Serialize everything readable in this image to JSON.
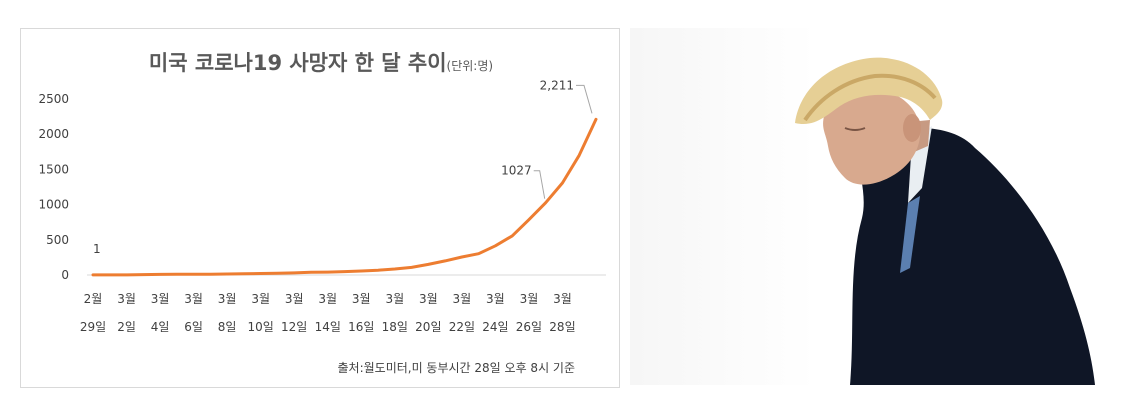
{
  "chart_data": {
    "type": "line",
    "title": "미국 코로나19 사망자 한 달 추이",
    "unit": "(단위:명)",
    "source": "출처:월도미터,미 동부시간 28일 오후 8시 기준",
    "y_ticks": [
      "2500",
      "2000",
      "1500",
      "1000",
      "500",
      "0"
    ],
    "ylim": [
      0,
      2500
    ],
    "x_tick_labels": [
      {
        "month": "2월",
        "day": "29일"
      },
      {
        "month": "3월",
        "day": "2일"
      },
      {
        "month": "3월",
        "day": "4일"
      },
      {
        "month": "3월",
        "day": "6일"
      },
      {
        "month": "3월",
        "day": "8일"
      },
      {
        "month": "3월",
        "day": "10일"
      },
      {
        "month": "3월",
        "day": "12일"
      },
      {
        "month": "3월",
        "day": "14일"
      },
      {
        "month": "3월",
        "day": "16일"
      },
      {
        "month": "3월",
        "day": "18일"
      },
      {
        "month": "3월",
        "day": "20일"
      },
      {
        "month": "3월",
        "day": "22일"
      },
      {
        "month": "3월",
        "day": "24일"
      },
      {
        "month": "3월",
        "day": "26일"
      },
      {
        "month": "3월",
        "day": "28일"
      }
    ],
    "series": [
      {
        "color": "#ed7d31",
        "values": [
          1,
          1,
          2,
          6,
          9,
          10,
          11,
          12,
          14,
          19,
          22,
          26,
          30,
          38,
          41,
          48,
          57,
          68,
          85,
          108,
          150,
          200,
          256,
          302,
          415,
          555,
          785,
          1027,
          1308,
          1700,
          2211
        ]
      }
    ],
    "data_labels": [
      {
        "index": 0,
        "text": "1"
      },
      {
        "index": 27,
        "text": "1027"
      },
      {
        "index": 30,
        "text": "2,211"
      }
    ],
    "grid": false
  },
  "photo": {
    "description_icon": "person-photo"
  }
}
